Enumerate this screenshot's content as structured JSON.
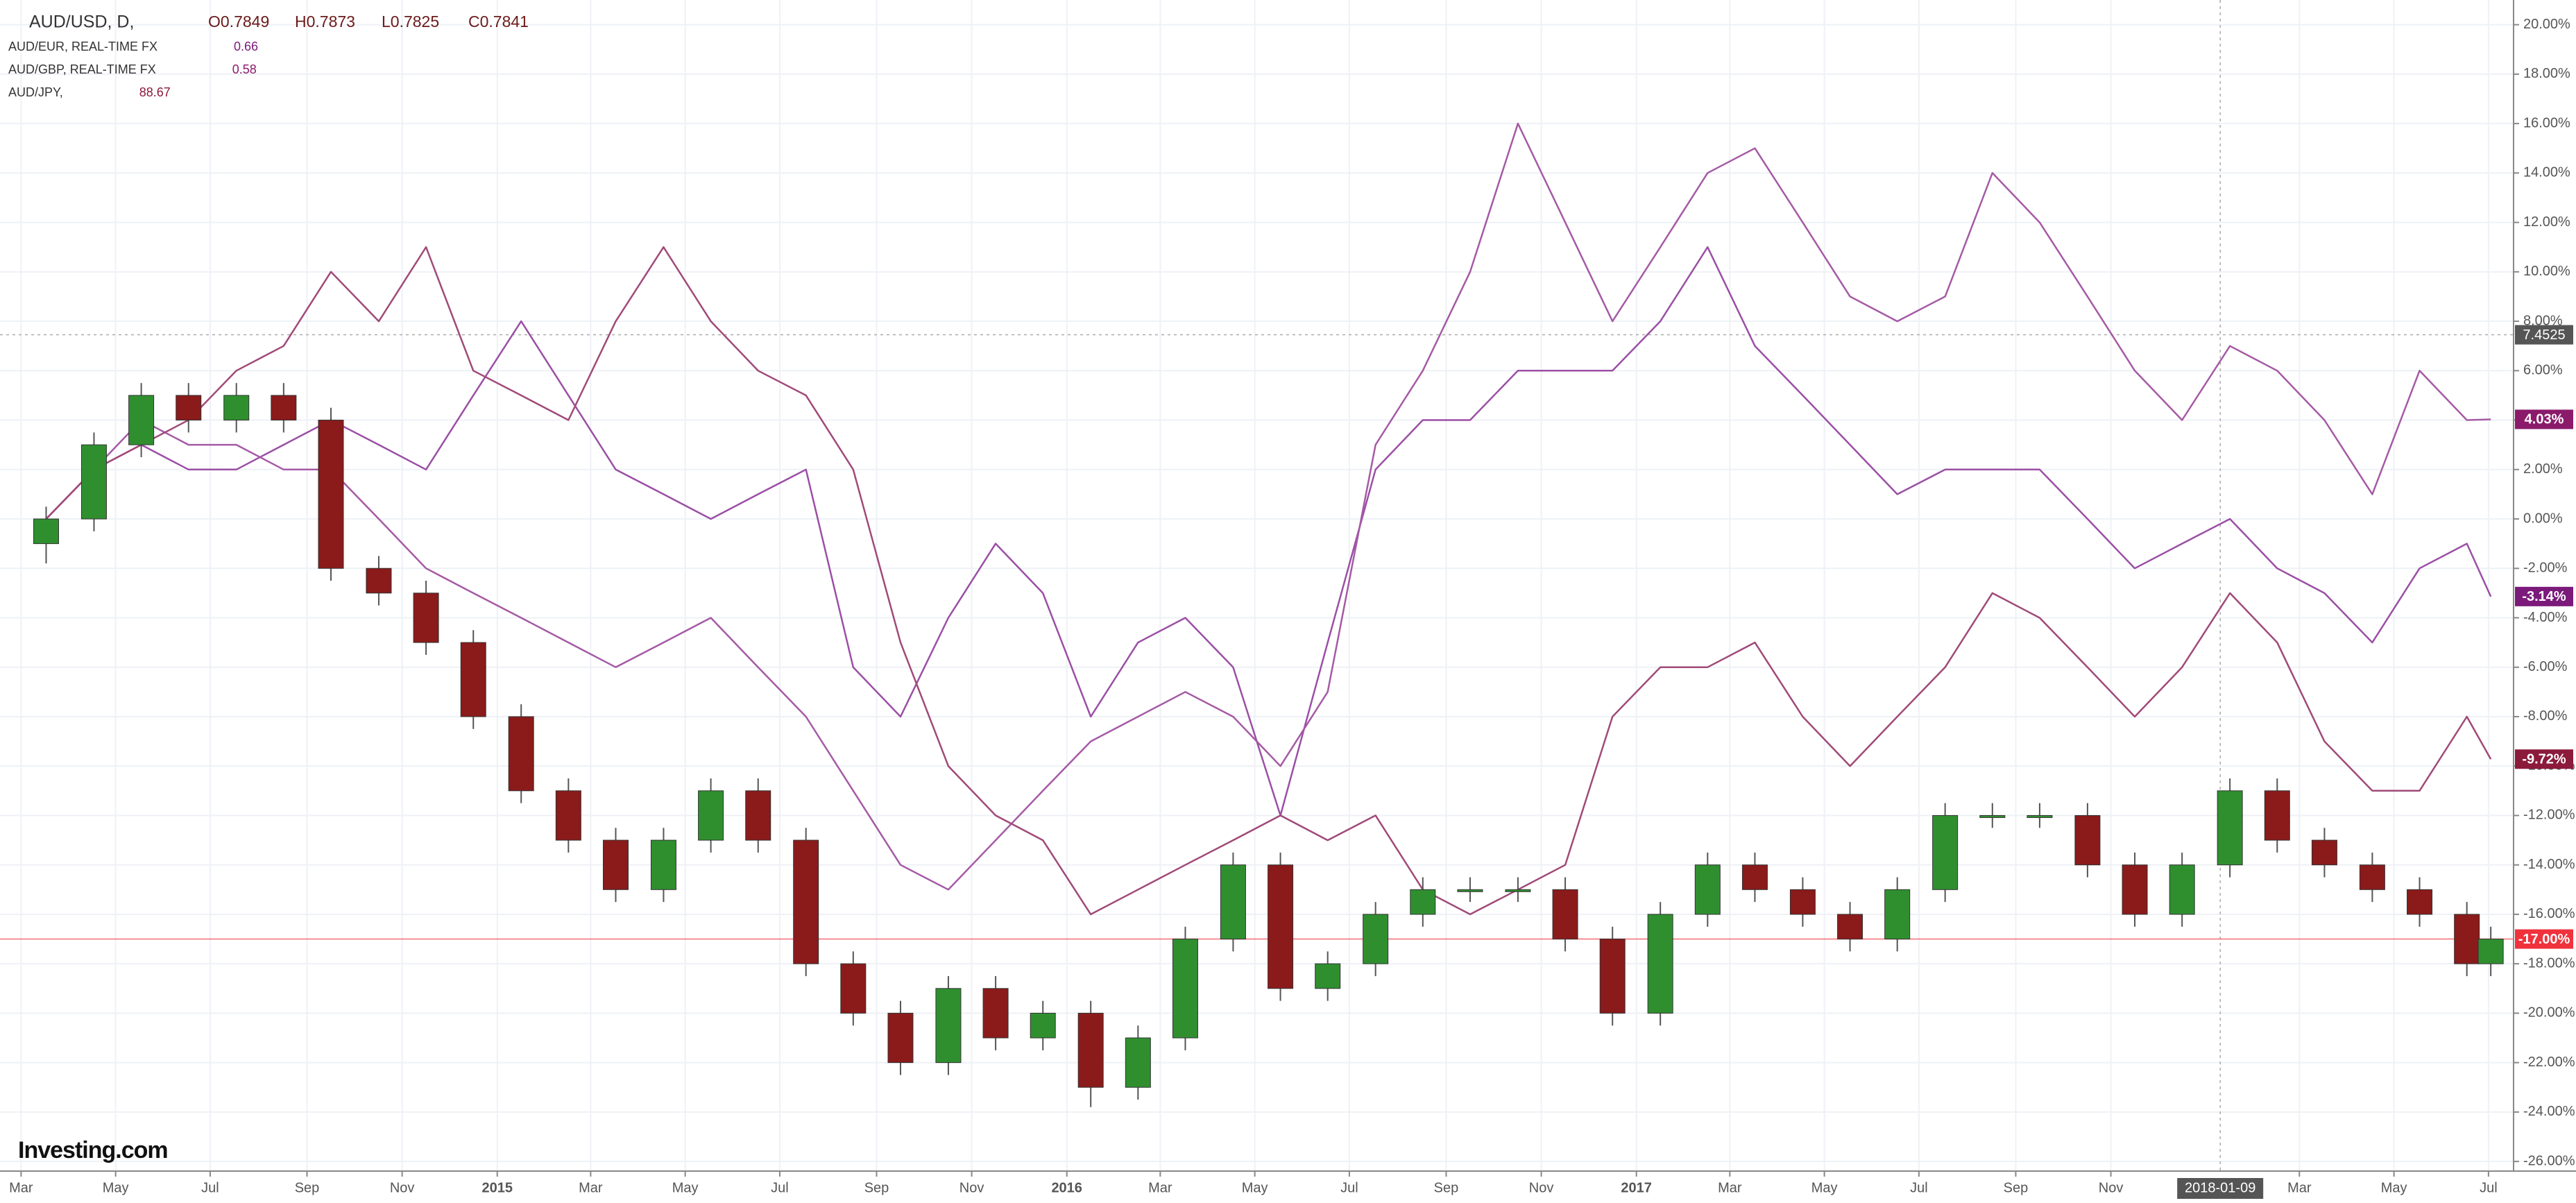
{
  "chart_data": {
    "type": "candlestick",
    "symbol": "AUD/USD, D,",
    "ohlc_legend": [
      "O0.7849",
      "H0.7873",
      "L0.7825",
      "C0.7841"
    ],
    "logo": "Investing.com",
    "x": [
      2014.208,
      2014.292,
      2014.375,
      2014.458,
      2014.542,
      2014.625,
      2014.708,
      2014.792,
      2014.875,
      2014.958,
      2015.042,
      2015.125,
      2015.208,
      2015.292,
      2015.375,
      2015.458,
      2015.542,
      2015.625,
      2015.708,
      2015.792,
      2015.875,
      2015.958,
      2016.042,
      2016.125,
      2016.208,
      2016.292,
      2016.375,
      2016.458,
      2016.542,
      2016.625,
      2016.708,
      2016.792,
      2016.875,
      2016.958,
      2017.042,
      2017.125,
      2017.208,
      2017.292,
      2017.375,
      2017.458,
      2017.542,
      2017.625,
      2017.708,
      2017.792,
      2017.875,
      2017.958,
      2018.042,
      2018.125,
      2018.208,
      2018.292,
      2018.375,
      2018.458,
      2018.5
    ],
    "xlim": [
      2014.127,
      2018.54
    ],
    "xticks": [
      {
        "value": 2014.164,
        "label": "Mar"
      },
      {
        "value": 2014.33,
        "label": "May"
      },
      {
        "value": 2014.496,
        "label": "Jul"
      },
      {
        "value": 2014.666,
        "label": "Sep"
      },
      {
        "value": 2014.833,
        "label": "Nov"
      },
      {
        "value": 2015.0,
        "label": "2015"
      },
      {
        "value": 2015.164,
        "label": "Mar"
      },
      {
        "value": 2015.33,
        "label": "May"
      },
      {
        "value": 2015.496,
        "label": "Jul"
      },
      {
        "value": 2015.666,
        "label": "Sep"
      },
      {
        "value": 2015.833,
        "label": "Nov"
      },
      {
        "value": 2016.0,
        "label": "2016"
      },
      {
        "value": 2016.164,
        "label": "Mar"
      },
      {
        "value": 2016.33,
        "label": "May"
      },
      {
        "value": 2016.496,
        "label": "Jul"
      },
      {
        "value": 2016.666,
        "label": "Sep"
      },
      {
        "value": 2016.833,
        "label": "Nov"
      },
      {
        "value": 2017.0,
        "label": "2017"
      },
      {
        "value": 2017.164,
        "label": "Mar"
      },
      {
        "value": 2017.33,
        "label": "May"
      },
      {
        "value": 2017.496,
        "label": "Jul"
      },
      {
        "value": 2017.666,
        "label": "Sep"
      },
      {
        "value": 2017.833,
        "label": "Nov"
      },
      {
        "value": 2018.164,
        "label": "Mar"
      },
      {
        "value": 2018.33,
        "label": "May"
      },
      {
        "value": 2018.496,
        "label": "Jul"
      }
    ],
    "ylim": [
      -26.39,
      21.0
    ],
    "yticks": [
      {
        "value": 20,
        "label": "20.00%"
      },
      {
        "value": 18,
        "label": "18.00%"
      },
      {
        "value": 16,
        "label": "16.00%"
      },
      {
        "value": 14,
        "label": "14.00%"
      },
      {
        "value": 12,
        "label": "12.00%"
      },
      {
        "value": 10,
        "label": "10.00%"
      },
      {
        "value": 8,
        "label": "8.00%"
      },
      {
        "value": 6,
        "label": "6.00%"
      },
      {
        "value": 4,
        "label": "4.00%"
      },
      {
        "value": 2,
        "label": "2.00%"
      },
      {
        "value": 0,
        "label": "0.00%"
      },
      {
        "value": -2,
        "label": "-2.00%"
      },
      {
        "value": -4,
        "label": "-4.00%"
      },
      {
        "value": -6,
        "label": "-6.00%"
      },
      {
        "value": -8,
        "label": "-8.00%"
      },
      {
        "value": -10,
        "label": "-10.00%"
      },
      {
        "value": -12,
        "label": "-12.00%"
      },
      {
        "value": -14,
        "label": "-14.00%"
      },
      {
        "value": -16,
        "label": "-16.00%"
      },
      {
        "value": -18,
        "label": "-18.00%"
      },
      {
        "value": -20,
        "label": "-20.00%"
      },
      {
        "value": -22,
        "label": "-22.00%"
      },
      {
        "value": -24,
        "label": "-24.00%"
      },
      {
        "value": -26,
        "label": "-26.00%"
      }
    ],
    "grid": true,
    "ohlc": {
      "up_color": "#2f8f2f",
      "down_color": "#8b1a1a",
      "last_label": "-17.00%",
      "last_color": "#f0323c",
      "open": [
        -1,
        0,
        3,
        5,
        4,
        5,
        4,
        -2,
        -3,
        -5,
        -8,
        -11,
        -13,
        -15,
        -13,
        -11,
        -13,
        -18,
        -20,
        -22,
        -19,
        -21,
        -20,
        -23,
        -21,
        -17,
        -14,
        -19,
        -18,
        -16,
        -15,
        -15,
        -15,
        -17,
        -20,
        -16,
        -14,
        -15,
        -16,
        -17,
        -15,
        -12,
        -12,
        -12,
        -14,
        -16,
        -14,
        -11,
        -13,
        -14,
        -15,
        -16,
        -18
      ],
      "high": [
        0.5,
        3.5,
        5.5,
        5.5,
        5.5,
        5.5,
        4.5,
        -1.5,
        -2.5,
        -4.5,
        -7.5,
        -10.5,
        -12.5,
        -12.5,
        -10.5,
        -10.5,
        -12.5,
        -17.5,
        -19.5,
        -18.5,
        -18.5,
        -19.5,
        -19.5,
        -20.5,
        -16.5,
        -13.5,
        -13.5,
        -17.5,
        -15.5,
        -14.5,
        -14.5,
        -14.5,
        -14.5,
        -16.5,
        -15.5,
        -13.5,
        -13.5,
        -14.5,
        -15.5,
        -14.5,
        -11.5,
        -11.5,
        -11.5,
        -11.5,
        -13.5,
        -13.5,
        -10.5,
        -10.5,
        -12.5,
        -13.5,
        -14.5,
        -15.5,
        -16.5
      ],
      "low": [
        -1.8,
        -0.5,
        2.5,
        3.5,
        3.5,
        3.5,
        -2.5,
        -3.5,
        -5.5,
        -8.5,
        -11.5,
        -13.5,
        -15.5,
        -15.5,
        -13.5,
        -13.5,
        -18.5,
        -20.5,
        -22.5,
        -22.5,
        -21.5,
        -21.5,
        -23.8,
        -23.5,
        -21.5,
        -17.5,
        -19.5,
        -19.5,
        -18.5,
        -16.5,
        -15.5,
        -15.5,
        -17.5,
        -20.5,
        -20.5,
        -16.5,
        -15.5,
        -16.5,
        -17.5,
        -17.5,
        -15.5,
        -12.5,
        -12.5,
        -14.5,
        -16.5,
        -16.5,
        -14.5,
        -13.5,
        -14.5,
        -15.5,
        -16.5,
        -18.5,
        -18.5
      ],
      "close": [
        0,
        3,
        5,
        4,
        5,
        4,
        -2,
        -3,
        -5,
        -8,
        -11,
        -13,
        -15,
        -13,
        -11,
        -13,
        -18,
        -20,
        -22,
        -19,
        -21,
        -20,
        -23,
        -21,
        -17,
        -14,
        -19,
        -18,
        -16,
        -15,
        -15,
        -15,
        -17,
        -20,
        -16,
        -14,
        -15,
        -16,
        -17,
        -15,
        -12,
        -12,
        -12,
        -14,
        -16,
        -14,
        -11,
        -13,
        -14,
        -15,
        -16,
        -18,
        -17
      ]
    },
    "series": [
      {
        "name": "AUD/EUR, REAL-TIME FX",
        "legend_value": "0.66",
        "color": "#9b4fa5",
        "last_label": "-3.14%",
        "last_color": "#7b1a7b",
        "values": [
          0,
          2,
          3,
          2,
          2,
          3,
          4,
          3,
          2,
          5,
          8,
          5,
          2,
          1,
          0,
          1,
          2,
          -6,
          -8,
          -4,
          -1,
          -3,
          -8,
          -5,
          -4,
          -6,
          -12,
          -5,
          2,
          4,
          4,
          6,
          6,
          6,
          8,
          11,
          7,
          5,
          3,
          1,
          2,
          2,
          2,
          0,
          -2,
          -1,
          0,
          -2,
          -3,
          -5,
          -2,
          -1,
          -3.14
        ]
      },
      {
        "name": "AUD/GBP, REAL-TIME FX",
        "legend_value": "0.58",
        "color": "#a55aa5",
        "last_label": "4.03%",
        "last_color": "#8b1a6b",
        "values": [
          0,
          2,
          4,
          3,
          3,
          2,
          2,
          0,
          -2,
          -3,
          -4,
          -5,
          -6,
          -5,
          -4,
          -6,
          -8,
          -11,
          -14,
          -15,
          -13,
          -11,
          -9,
          -8,
          -7,
          -8,
          -10,
          -7,
          3,
          6,
          10,
          16,
          12,
          8,
          11,
          14,
          15,
          12,
          9,
          8,
          9,
          14,
          12,
          9,
          6,
          4,
          7,
          6,
          4,
          1,
          6,
          4,
          4.03
        ]
      },
      {
        "name": "AUD/JPY,",
        "legend_value": "88.67",
        "color": "#a04a78",
        "last_label": "-9.72%",
        "last_color": "#8b1a3b",
        "values": [
          0,
          2,
          3,
          4,
          6,
          7,
          10,
          8,
          11,
          6,
          5,
          4,
          8,
          11,
          8,
          6,
          5,
          2,
          -5,
          -10,
          -12,
          -13,
          -16,
          -15,
          -14,
          -13,
          -12,
          -13,
          -12,
          -15,
          -16,
          -15,
          -14,
          -8,
          -6,
          -6,
          -5,
          -8,
          -10,
          -8,
          -6,
          -3,
          -4,
          -6,
          -8,
          -6,
          -3,
          -5,
          -9,
          -11,
          -11,
          -8,
          -9.72
        ]
      }
    ],
    "crosshair": {
      "x": 2018.025,
      "x_label": "2018-01-09",
      "y": 7.4525,
      "y_label": "7.4525"
    }
  }
}
